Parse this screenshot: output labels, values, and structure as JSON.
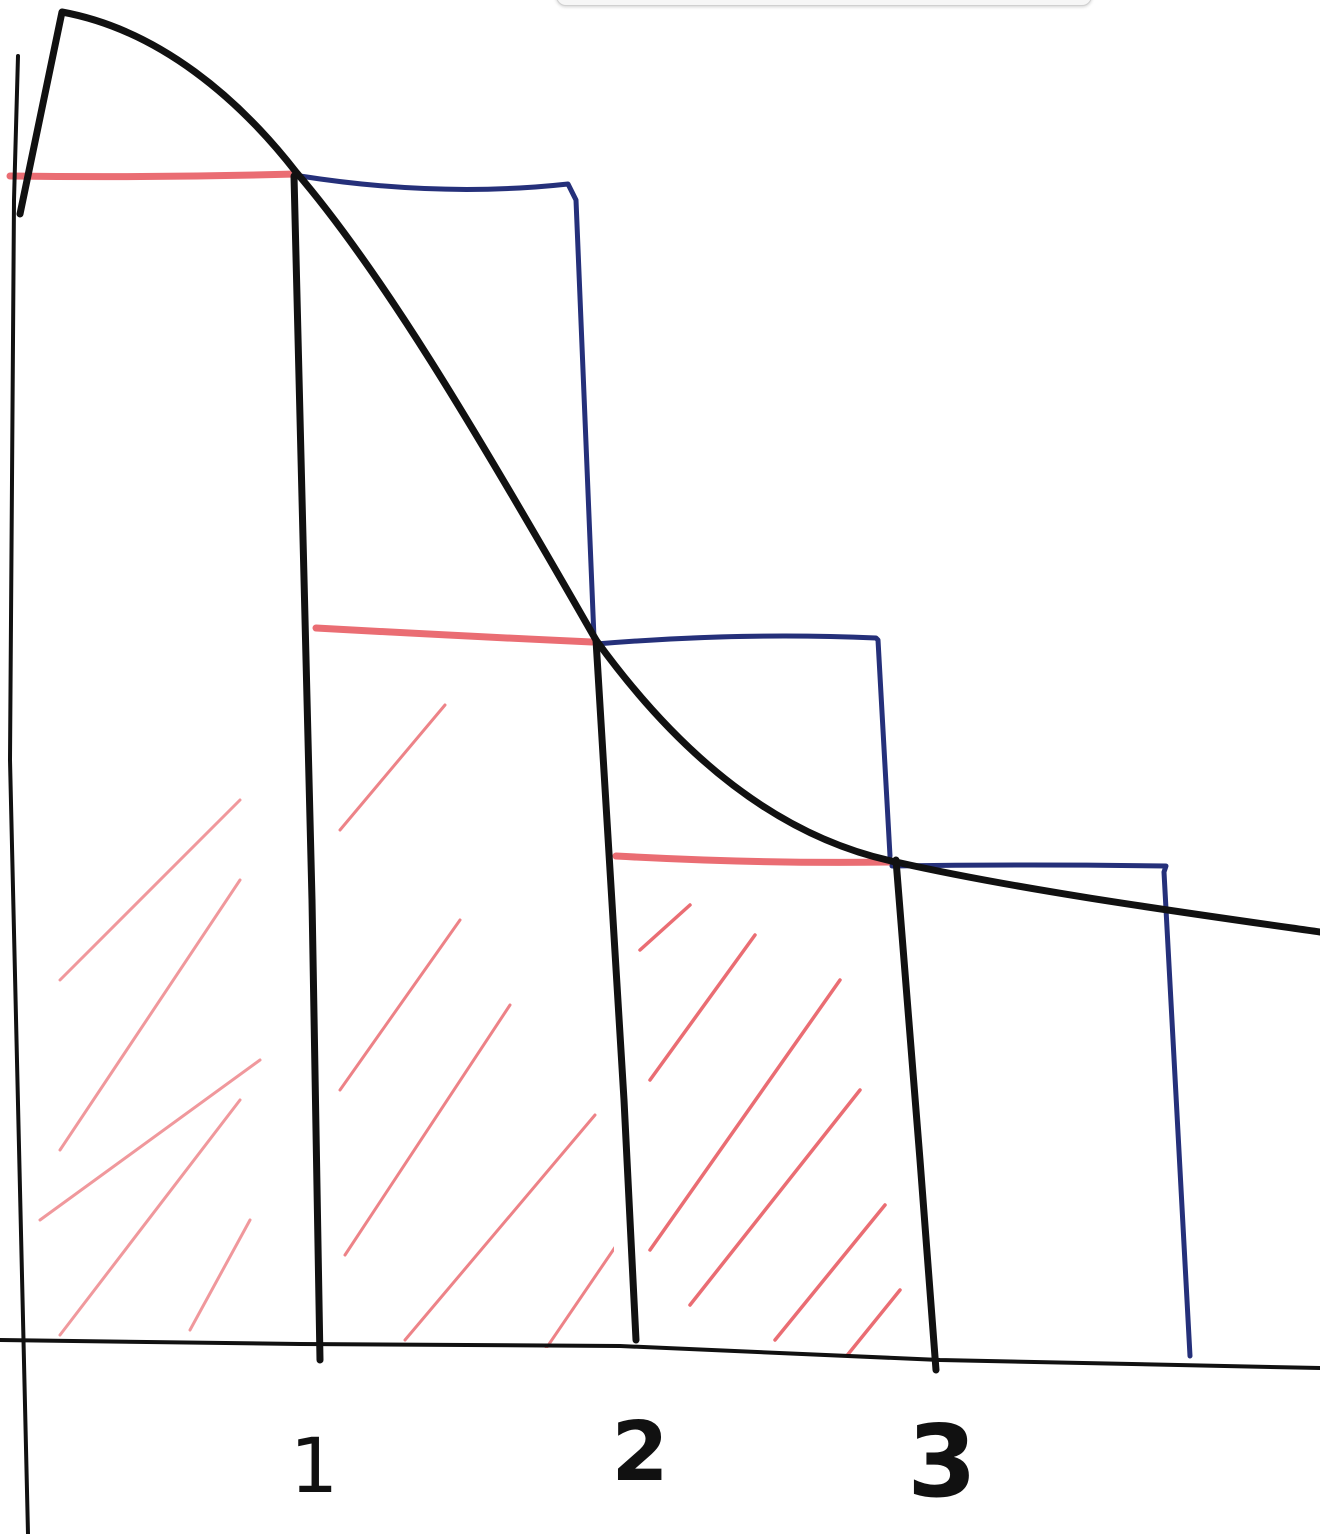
{
  "tick_labels": {
    "t1": "1",
    "t2": "2",
    "t3": "3"
  },
  "colors": {
    "curve": "#111111",
    "axes": "#111111",
    "lower_rectangles": "#ea6d73",
    "upper_rectangles": "#25307a",
    "hatching": "#ea6d73",
    "background": "#ffffff"
  },
  "icons": {
    "tab_overlay": "browser-tab-overlay"
  }
}
